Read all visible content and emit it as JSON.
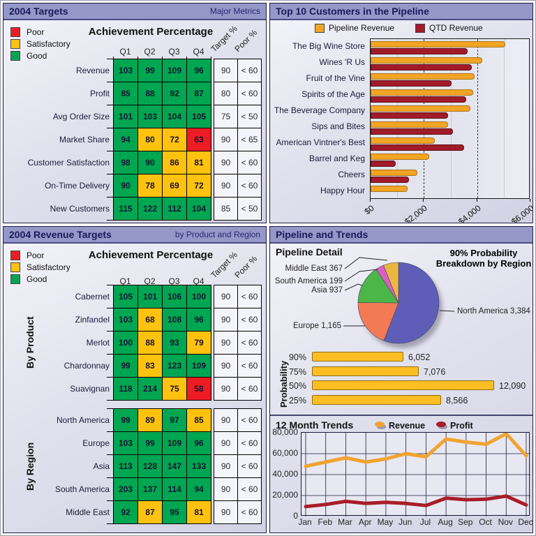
{
  "colors": {
    "header_bg": "#9697c9",
    "header_text": "#181a56",
    "good": "#00a651",
    "satisfactory": "#ffc20e",
    "poor": "#ed1c24",
    "pipeline_bar": "#f3a425",
    "qtd_bar": "#a21b29",
    "probability_bar": "#fcbe23",
    "revenue_line": "#f2a431",
    "profit_line": "#a81d28",
    "pie_north_america": "#5e5eb8",
    "pie_europe": "#f47a55",
    "pie_asia": "#4cb648",
    "pie_south_america": "#d95fc0",
    "pie_middle_east": "#ebb740"
  },
  "panels": {
    "targets": {
      "title": "2004 Targets",
      "subtitle": "Major Metrics",
      "table_title": "Achievement Percentage",
      "legend": [
        {
          "label": "Poor",
          "color": "#ed1c24"
        },
        {
          "label": "Satisfactory",
          "color": "#ffc20e"
        },
        {
          "label": "Good",
          "color": "#00a651"
        }
      ],
      "col_headers": [
        "Q1",
        "Q2",
        "Q3",
        "Q4"
      ],
      "rot_headers": [
        "Target %",
        "Poor %"
      ]
    },
    "top10": {
      "title": "Top 10 Customers in the Pipeline",
      "legend": [
        {
          "label": "Pipeline Revenue",
          "color": "#f3a425"
        },
        {
          "label": "QTD Revenue",
          "color": "#a21b29"
        }
      ]
    },
    "revenue_targets": {
      "title": "2004 Revenue Targets",
      "subtitle": "by Product and Region",
      "table_title": "Achievement Percentage",
      "legend": [
        {
          "label": "Poor",
          "color": "#ed1c24"
        },
        {
          "label": "Satisfactory",
          "color": "#ffc20e"
        },
        {
          "label": "Good",
          "color": "#00a651"
        }
      ],
      "col_headers": [
        "Q1",
        "Q2",
        "Q3",
        "Q4"
      ],
      "rot_headers": [
        "Target %",
        "Poor %"
      ],
      "group_labels": [
        "By Product",
        "By Region"
      ]
    },
    "pipeline_trends": {
      "title": "Pipeline and Trends",
      "detail_title": "Pipeline Detail",
      "annotation": "90% Probability Breakdown by Region",
      "prob_ylabel": "Probability",
      "trends_title": "12 Month Trends",
      "trends_legend": [
        {
          "label": "Revenue",
          "color": "#f2a431"
        },
        {
          "label": "Profit",
          "color": "#a81d28"
        }
      ]
    }
  },
  "chart_data": [
    {
      "id": "targets_heatmap",
      "type": "heatmap",
      "title": "2004 Targets — Achievement Percentage",
      "columns": [
        "Q1",
        "Q2",
        "Q3",
        "Q4",
        "Target %",
        "Poor %"
      ],
      "status_key": {
        "g": "good",
        "s": "satisfactory",
        "p": "poor"
      },
      "rows": [
        {
          "label": "Revenue",
          "values": [
            103,
            99,
            109,
            96
          ],
          "status": "gggg",
          "target": "90",
          "poor": "< 60"
        },
        {
          "label": "Profit",
          "values": [
            85,
            88,
            92,
            87
          ],
          "status": "gggg",
          "target": "80",
          "poor": "< 60"
        },
        {
          "label": "Avg Order Size",
          "values": [
            101,
            103,
            104,
            105
          ],
          "status": "gggg",
          "target": "75",
          "poor": "< 50"
        },
        {
          "label": "Market Share",
          "values": [
            94,
            80,
            72,
            63
          ],
          "status": "gssp",
          "target": "90",
          "poor": "< 65"
        },
        {
          "label": "Customer Satisfaction",
          "values": [
            98,
            90,
            86,
            81
          ],
          "status": "ggss",
          "target": "90",
          "poor": "< 60"
        },
        {
          "label": "On-Time Delivery",
          "values": [
            90,
            78,
            69,
            72
          ],
          "status": "gsss",
          "target": "90",
          "poor": "< 60"
        },
        {
          "label": "New Customers",
          "values": [
            115,
            122,
            112,
            104
          ],
          "status": "gggg",
          "target": "85",
          "poor": "< 50"
        }
      ]
    },
    {
      "id": "top10_bar",
      "type": "bar",
      "orientation": "horizontal",
      "title": "Top 10 Customers in the Pipeline",
      "categories": [
        "The Big Wine Store",
        "Wines 'R Us",
        "Fruit of the Vine",
        "Spirits of the Age",
        "The Beverage Company",
        "Sips and Bites",
        "American Vintner's Best",
        "Barrel and Keg",
        "Cheers",
        "Happy Hour"
      ],
      "series": [
        {
          "name": "Pipeline Revenue",
          "values": [
            5050,
            4200,
            3900,
            3850,
            3750,
            2900,
            2400,
            2200,
            1750,
            1400
          ]
        },
        {
          "name": "QTD Revenue",
          "values": [
            3650,
            3800,
            3050,
            3600,
            2900,
            3100,
            3500,
            950,
            1450,
            null
          ]
        }
      ],
      "xlim": [
        0,
        6000
      ],
      "x_ticks": [
        "$0",
        "$2,000",
        "$4,000",
        "$6,000"
      ]
    },
    {
      "id": "revenue_heatmap",
      "type": "heatmap",
      "title": "2004 Revenue Targets — Achievement Percentage",
      "columns": [
        "Q1",
        "Q2",
        "Q3",
        "Q4",
        "Target %",
        "Poor %"
      ],
      "status_key": {
        "g": "good",
        "s": "satisfactory",
        "p": "poor"
      },
      "groups": [
        {
          "group": "By Product",
          "rows": [
            {
              "label": "Cabernet",
              "values": [
                105,
                101,
                106,
                100
              ],
              "status": "gggg",
              "target": "90",
              "poor": "< 60"
            },
            {
              "label": "Zinfandel",
              "values": [
                103,
                68,
                108,
                96
              ],
              "status": "gsgg",
              "target": "90",
              "poor": "< 60"
            },
            {
              "label": "Merlot",
              "values": [
                100,
                88,
                93,
                79
              ],
              "status": "gsgs",
              "target": "90",
              "poor": "< 60"
            },
            {
              "label": "Chardonnay",
              "values": [
                99,
                83,
                123,
                109
              ],
              "status": "gsgg",
              "target": "90",
              "poor": "< 60"
            },
            {
              "label": "Suavignan",
              "values": [
                118,
                214,
                75,
                58
              ],
              "status": "ggsp",
              "target": "90",
              "poor": "< 60"
            }
          ]
        },
        {
          "group": "By Region",
          "rows": [
            {
              "label": "North America",
              "values": [
                99,
                89,
                97,
                85
              ],
              "status": "gsgs",
              "target": "90",
              "poor": "< 60"
            },
            {
              "label": "Europe",
              "values": [
                103,
                99,
                109,
                96
              ],
              "status": "gggg",
              "target": "90",
              "poor": "< 60"
            },
            {
              "label": "Asia",
              "values": [
                113,
                128,
                147,
                133
              ],
              "status": "gggg",
              "target": "90",
              "poor": "< 60"
            },
            {
              "label": "South America",
              "values": [
                203,
                137,
                114,
                94
              ],
              "status": "gggg",
              "target": "90",
              "poor": "< 60"
            },
            {
              "label": "Middle East",
              "values": [
                92,
                87,
                95,
                81
              ],
              "status": "gsgs",
              "target": "90",
              "poor": "< 60"
            }
          ]
        }
      ]
    },
    {
      "id": "pipeline_pie",
      "type": "pie",
      "title": "Pipeline Detail",
      "annotation": "90% Probability Breakdown by Region",
      "labels": [
        "North America",
        "Europe",
        "Asia",
        "South America",
        "Middle East"
      ],
      "values": [
        3384,
        1165,
        937,
        199,
        367
      ],
      "display_labels": [
        "North America 3,384",
        "Europe 1,165",
        "Asia 937",
        "South America 199",
        "Middle East 367"
      ],
      "colors": [
        "#5e5eb8",
        "#f47a55",
        "#4cb648",
        "#d95fc0",
        "#ebb740"
      ]
    },
    {
      "id": "probability_bar",
      "type": "bar",
      "orientation": "horizontal",
      "title": "Probability",
      "categories": [
        "90%",
        "75%",
        "50%",
        "25%"
      ],
      "values": [
        6052,
        7076,
        12090,
        8566
      ],
      "value_labels": [
        "6,052",
        "7,076",
        "12,090",
        "8,566"
      ],
      "xlim": [
        0,
        12090
      ]
    },
    {
      "id": "trends_line",
      "type": "line",
      "title": "12 Month Trends",
      "x": [
        "Jan",
        "Feb",
        "Mar",
        "Apr",
        "May",
        "Jun",
        "Jul",
        "Aug",
        "Sep",
        "Oct",
        "Nov",
        "Dec"
      ],
      "series": [
        {
          "name": "Revenue",
          "values": [
            48000,
            52000,
            56000,
            52000,
            55000,
            60000,
            57000,
            74000,
            71000,
            69000,
            79000,
            58000
          ]
        },
        {
          "name": "Profit",
          "values": [
            9500,
            11500,
            14500,
            12500,
            13500,
            12500,
            10500,
            17500,
            16000,
            16500,
            19500,
            11000
          ]
        }
      ],
      "ylim": [
        0,
        80000
      ],
      "y_ticks": [
        "80,000",
        "60,000",
        "40,000",
        "20,000",
        "0"
      ],
      "grid": true
    }
  ]
}
